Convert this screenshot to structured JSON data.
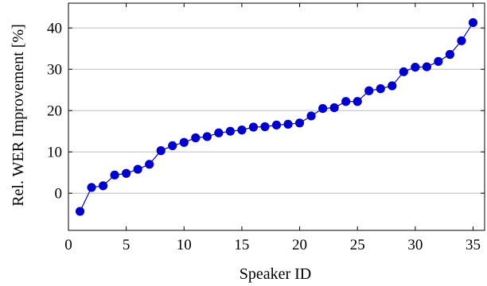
{
  "chart_data": {
    "type": "line",
    "xlabel": "Speaker ID",
    "ylabel": "Rel. WER Improvement [%]",
    "xlim": [
      0,
      36
    ],
    "ylim": [
      -9,
      46
    ],
    "xticks": [
      0,
      5,
      10,
      15,
      20,
      25,
      30,
      35
    ],
    "yticks": [
      0,
      10,
      20,
      30,
      40
    ],
    "xtick_labels": [
      "0",
      "5",
      "10",
      "15",
      "20",
      "25",
      "30",
      "35"
    ],
    "ytick_labels": [
      "0",
      "10",
      "20",
      "30",
      "40"
    ],
    "grid": "horizontal",
    "legend": "none",
    "series": [
      {
        "color": "#0000cc",
        "marker": "circle",
        "x": [
          1,
          2,
          3,
          4,
          5,
          6,
          7,
          8,
          9,
          10,
          11,
          12,
          13,
          14,
          15,
          16,
          17,
          18,
          19,
          20,
          21,
          22,
          23,
          24,
          25,
          26,
          27,
          28,
          29,
          30,
          31,
          32,
          33,
          34,
          35
        ],
        "y": [
          -4.4,
          1.4,
          1.8,
          4.4,
          4.8,
          5.8,
          7.0,
          10.3,
          11.5,
          12.3,
          13.4,
          13.7,
          14.6,
          15.0,
          15.3,
          16.0,
          16.1,
          16.5,
          16.7,
          17.0,
          18.7,
          20.5,
          20.7,
          22.2,
          22.2,
          24.8,
          25.3,
          26.0,
          29.4,
          30.5,
          30.6,
          31.9,
          33.6,
          36.9,
          41.3
        ]
      }
    ]
  }
}
